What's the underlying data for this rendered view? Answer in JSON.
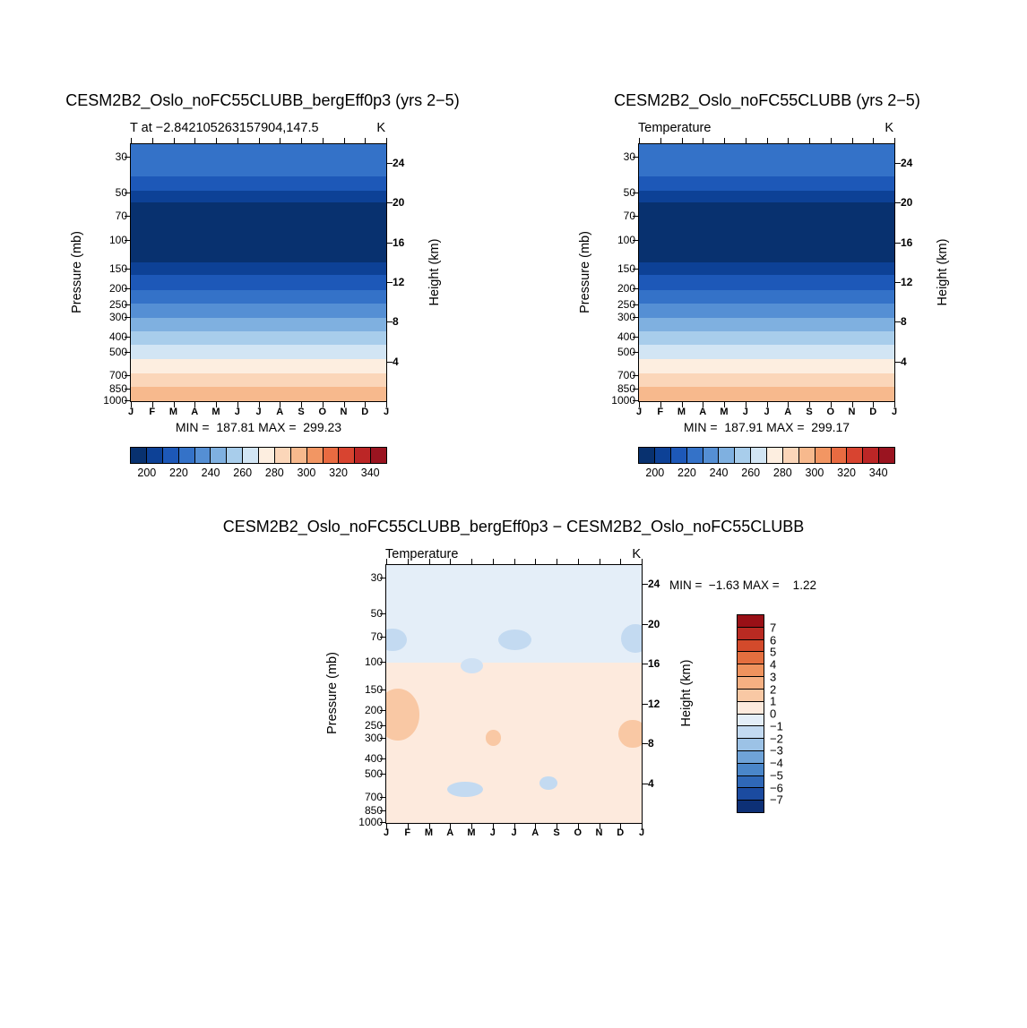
{
  "months": [
    "J",
    "F",
    "M",
    "A",
    "M",
    "J",
    "J",
    "A",
    "S",
    "O",
    "N",
    "D",
    "J"
  ],
  "chart_data": [
    {
      "type": "filled-contour",
      "title": "CESM2B2_Oslo_noFC55CLUBB_bergEff0p3 (yrs 2−5)",
      "subtitle": "T at −2.842105263157904,147.5",
      "units": "K",
      "min": 187.81,
      "max": 299.23,
      "minmax_label": "MIN =  187.81 MAX =  299.23",
      "x_axis": {
        "categories": [
          "J",
          "F",
          "M",
          "A",
          "M",
          "J",
          "J",
          "A",
          "S",
          "O",
          "N",
          "D",
          "J"
        ]
      },
      "y_axis": {
        "label": "Pressure (mb)",
        "scale": "log",
        "min": 25,
        "max": 1013,
        "ticks": [
          30,
          50,
          70,
          100,
          150,
          200,
          250,
          300,
          400,
          500,
          700,
          850,
          1000
        ]
      },
      "y2_axis": {
        "label": "Height (km)",
        "ticks": [
          24,
          20,
          16,
          12,
          8,
          4
        ],
        "scale_height_km": 7
      },
      "contour_interval": 10,
      "colorbar": {
        "orientation": "horizontal",
        "tick_labels": [
          "200",
          "220",
          "240",
          "260",
          "280",
          "300",
          "320",
          "340"
        ],
        "colors": [
          "#08316f",
          "#0d4196",
          "#1d58b8",
          "#3472c8",
          "#558fd4",
          "#7fb0e0",
          "#a8cdeb",
          "#d2e5f4",
          "#fdeee0",
          "#fbd6b9",
          "#f7b98d",
          "#f29663",
          "#e96b41",
          "#d84430",
          "#bc2626",
          "#9a1420"
        ]
      },
      "bands": [
        {
          "p": [
            25,
            40
          ],
          "t": [
            220,
            230
          ],
          "color": "#3472c8"
        },
        {
          "p": [
            40,
            49
          ],
          "t": [
            210,
            220
          ],
          "color": "#1d58b8"
        },
        {
          "p": [
            49,
            58
          ],
          "t": [
            200,
            210
          ],
          "color": "#0d4196"
        },
        {
          "p": [
            58,
            137
          ],
          "t": [
            190,
            200
          ],
          "color": "#08316f"
        },
        {
          "p": [
            137,
            165
          ],
          "t": [
            200,
            210
          ],
          "color": "#0d4196"
        },
        {
          "p": [
            165,
            205
          ],
          "t": [
            210,
            220
          ],
          "color": "#1d58b8"
        },
        {
          "p": [
            205,
            248
          ],
          "t": [
            220,
            230
          ],
          "color": "#3472c8"
        },
        {
          "p": [
            248,
            306
          ],
          "t": [
            230,
            240
          ],
          "color": "#558fd4"
        },
        {
          "p": [
            306,
            369
          ],
          "t": [
            240,
            250
          ],
          "color": "#7fb0e0"
        },
        {
          "p": [
            369,
            452
          ],
          "t": [
            250,
            260
          ],
          "color": "#a8cdeb"
        },
        {
          "p": [
            452,
            553
          ],
          "t": [
            260,
            270
          ],
          "color": "#d2e5f4"
        },
        {
          "p": [
            553,
            675
          ],
          "t": [
            270,
            280
          ],
          "color": "#fdeee0"
        },
        {
          "p": [
            675,
            820
          ],
          "t": [
            280,
            290
          ],
          "color": "#fbd6b9"
        },
        {
          "p": [
            820,
            1013
          ],
          "t": [
            290,
            300
          ],
          "color": "#f7b98d"
        }
      ]
    },
    {
      "type": "filled-contour",
      "title": "CESM2B2_Oslo_noFC55CLUBB (yrs 2−5)",
      "subtitle": "Temperature",
      "units": "K",
      "min": 187.91,
      "max": 299.17,
      "minmax_label": "MIN =  187.91 MAX =  299.17",
      "x_axis": {
        "categories": [
          "J",
          "F",
          "M",
          "A",
          "M",
          "J",
          "J",
          "A",
          "S",
          "O",
          "N",
          "D",
          "J"
        ]
      },
      "y_axis": {
        "label": "Pressure (mb)",
        "scale": "log",
        "min": 25,
        "max": 1013,
        "ticks": [
          30,
          50,
          70,
          100,
          150,
          200,
          250,
          300,
          400,
          500,
          700,
          850,
          1000
        ]
      },
      "y2_axis": {
        "label": "Height (km)",
        "ticks": [
          24,
          20,
          16,
          12,
          8,
          4
        ],
        "scale_height_km": 7
      },
      "contour_interval": 10,
      "colorbar": {
        "orientation": "horizontal",
        "tick_labels": [
          "200",
          "220",
          "240",
          "260",
          "280",
          "300",
          "320",
          "340"
        ],
        "colors": [
          "#08316f",
          "#0d4196",
          "#1d58b8",
          "#3472c8",
          "#558fd4",
          "#7fb0e0",
          "#a8cdeb",
          "#d2e5f4",
          "#fdeee0",
          "#fbd6b9",
          "#f7b98d",
          "#f29663",
          "#e96b41",
          "#d84430",
          "#bc2626",
          "#9a1420"
        ]
      },
      "bands": [
        {
          "p": [
            25,
            40
          ],
          "t": [
            220,
            230
          ],
          "color": "#3472c8"
        },
        {
          "p": [
            40,
            49
          ],
          "t": [
            210,
            220
          ],
          "color": "#1d58b8"
        },
        {
          "p": [
            49,
            58
          ],
          "t": [
            200,
            210
          ],
          "color": "#0d4196"
        },
        {
          "p": [
            58,
            137
          ],
          "t": [
            190,
            200
          ],
          "color": "#08316f"
        },
        {
          "p": [
            137,
            165
          ],
          "t": [
            200,
            210
          ],
          "color": "#0d4196"
        },
        {
          "p": [
            165,
            205
          ],
          "t": [
            210,
            220
          ],
          "color": "#1d58b8"
        },
        {
          "p": [
            205,
            248
          ],
          "t": [
            220,
            230
          ],
          "color": "#3472c8"
        },
        {
          "p": [
            248,
            306
          ],
          "t": [
            230,
            240
          ],
          "color": "#558fd4"
        },
        {
          "p": [
            306,
            369
          ],
          "t": [
            240,
            250
          ],
          "color": "#7fb0e0"
        },
        {
          "p": [
            369,
            452
          ],
          "t": [
            250,
            260
          ],
          "color": "#a8cdeb"
        },
        {
          "p": [
            452,
            553
          ],
          "t": [
            260,
            270
          ],
          "color": "#d2e5f4"
        },
        {
          "p": [
            553,
            675
          ],
          "t": [
            270,
            280
          ],
          "color": "#fdeee0"
        },
        {
          "p": [
            675,
            820
          ],
          "t": [
            280,
            290
          ],
          "color": "#fbd6b9"
        },
        {
          "p": [
            820,
            1013
          ],
          "t": [
            290,
            300
          ],
          "color": "#f7b98d"
        }
      ]
    },
    {
      "type": "filled-contour-difference",
      "title": "CESM2B2_Oslo_noFC55CLUBB_bergEff0p3 − CESM2B2_Oslo_noFC55CLUBB",
      "subtitle": "Temperature",
      "units": "K",
      "min": -1.63,
      "max": 1.22,
      "minmax_label": "MIN =  −1.63 MAX =    1.22",
      "x_axis": {
        "categories": [
          "J",
          "F",
          "M",
          "A",
          "M",
          "J",
          "J",
          "A",
          "S",
          "O",
          "N",
          "D",
          "J"
        ]
      },
      "y_axis": {
        "label": "Pressure (mb)",
        "scale": "log",
        "min": 25,
        "max": 1013,
        "ticks": [
          30,
          50,
          70,
          100,
          150,
          200,
          250,
          300,
          400,
          500,
          700,
          850,
          1000
        ]
      },
      "y2_axis": {
        "label": "Height (km)",
        "ticks": [
          24,
          20,
          16,
          12,
          8,
          4
        ],
        "scale_height_km": 7
      },
      "contour_interval": 1,
      "colorbar": {
        "orientation": "vertical",
        "tick_labels": [
          "7",
          "6",
          "5",
          "4",
          "3",
          "2",
          "1",
          "0",
          "−1",
          "−2",
          "−3",
          "−4",
          "−5",
          "−6",
          "−7"
        ],
        "colors": [
          "#991016",
          "#b92a22",
          "#d34a2b",
          "#e46f3f",
          "#ef935e",
          "#f6b082",
          "#f9c8a4",
          "#fdeadd",
          "#e4eef8",
          "#c3daf1",
          "#9cc2e6",
          "#6fa3d8",
          "#4a86c9",
          "#2f68b8",
          "#1b4ba0",
          "#0d3076"
        ]
      },
      "bands": [
        {
          "p": [
            25,
            102
          ],
          "v": [
            -1,
            0
          ],
          "color": "#e4eef8"
        },
        {
          "p": [
            102,
            1013
          ],
          "v": [
            0,
            1
          ],
          "color": "#fdeadd"
        }
      ],
      "blobs": [
        {
          "x": -3,
          "y": 24.5,
          "w": 11,
          "h": 9,
          "v": [
            -2,
            -1
          ],
          "color": "#c3daf1"
        },
        {
          "x": 44,
          "y": 25,
          "w": 13,
          "h": 8,
          "v": [
            -2,
            -1
          ],
          "color": "#c3daf1"
        },
        {
          "x": 92,
          "y": 23,
          "w": 11,
          "h": 11,
          "v": [
            -2,
            -1
          ],
          "color": "#c3daf1"
        },
        {
          "x": 29,
          "y": 36,
          "w": 9,
          "h": 6,
          "v": [
            -2,
            -1
          ],
          "color": "#cfe1f4"
        },
        {
          "x": -4,
          "y": 48,
          "w": 17,
          "h": 20,
          "v": [
            1,
            2
          ],
          "color": "#f9c8a4"
        },
        {
          "x": 39,
          "y": 64,
          "w": 6,
          "h": 6,
          "v": [
            1,
            2
          ],
          "color": "#f9c8a4"
        },
        {
          "x": 91,
          "y": 60,
          "w": 11,
          "h": 11,
          "v": [
            1,
            2
          ],
          "color": "#f9c8a4"
        },
        {
          "x": 24,
          "y": 84,
          "w": 14,
          "h": 6,
          "v": [
            -2,
            -1
          ],
          "color": "#c3daf1"
        },
        {
          "x": 60,
          "y": 82,
          "w": 7,
          "h": 5,
          "v": [
            -2,
            -1
          ],
          "color": "#c3daf1"
        }
      ]
    }
  ]
}
